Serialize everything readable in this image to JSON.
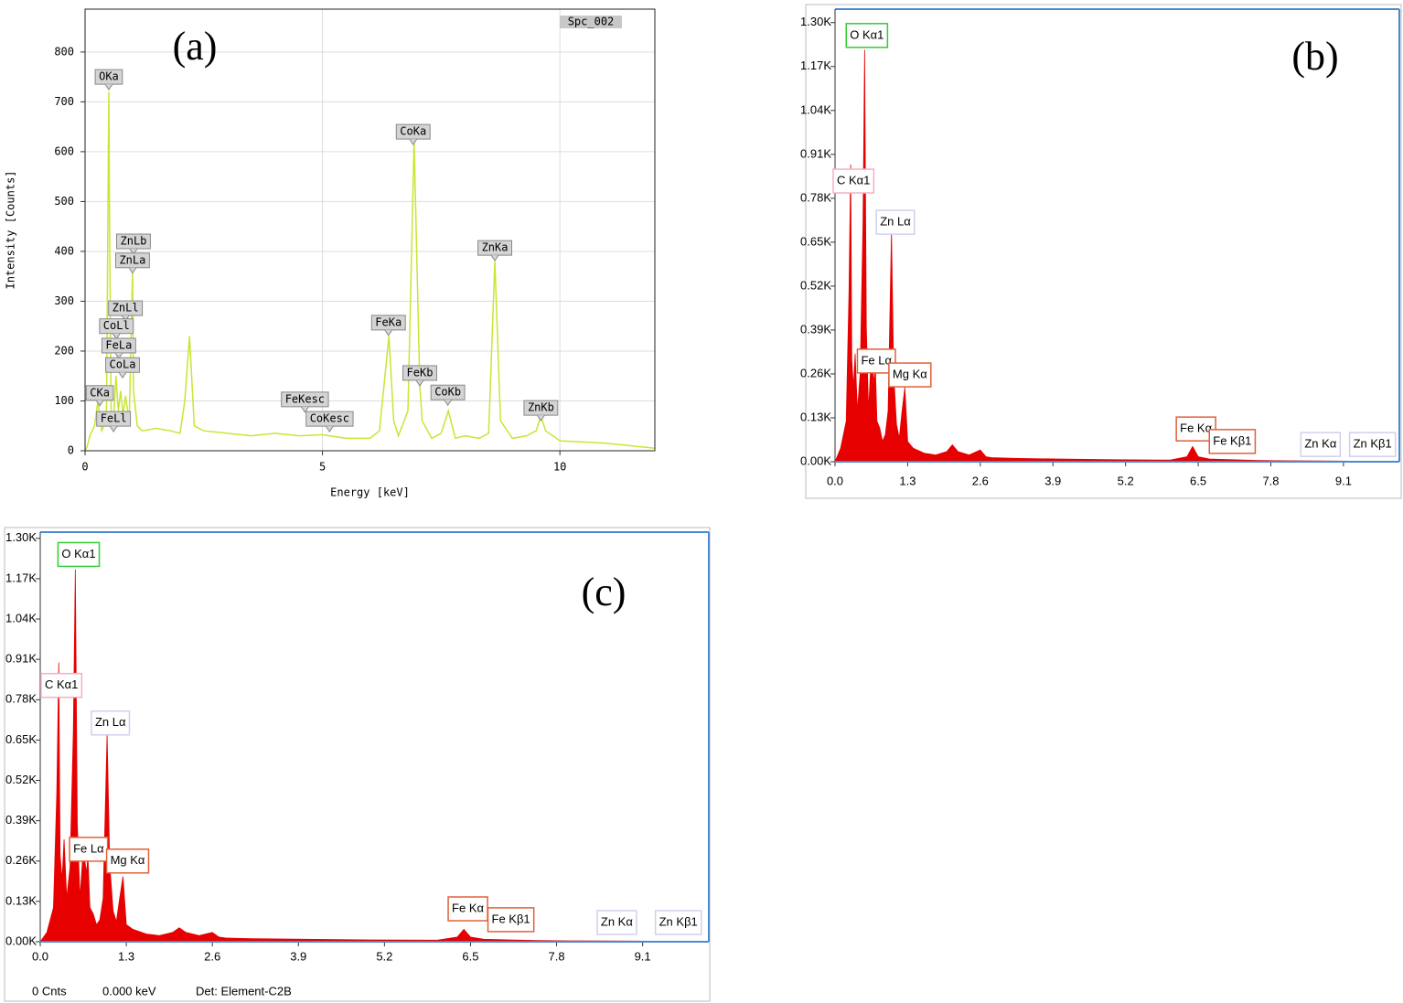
{
  "chart_data": [
    {
      "type": "line",
      "panel_label": "(a)",
      "spectrum_name": "Spc_002",
      "x_label": "Energy [keV]",
      "y_label": "Intensity [Counts]",
      "color": "#c8e632",
      "grid": true,
      "annotation_color": "#d4d4d4",
      "xlim": [
        0,
        12
      ],
      "xticks": [
        0,
        5,
        10
      ],
      "ylim": [
        0,
        886
      ],
      "yticks": [
        0,
        100,
        200,
        300,
        400,
        500,
        600,
        700,
        800
      ],
      "x": [
        0,
        0.05,
        0.1,
        0.2,
        0.27,
        0.35,
        0.45,
        0.5,
        0.52,
        0.55,
        0.6,
        0.65,
        0.7,
        0.75,
        0.8,
        0.85,
        0.93,
        1.0,
        1.02,
        1.1,
        1.2,
        1.5,
        1.8,
        2.0,
        2.1,
        2.2,
        2.3,
        2.5,
        3,
        3.5,
        4,
        4.5,
        5,
        5.5,
        6.0,
        6.2,
        6.4,
        6.5,
        6.6,
        6.8,
        6.93,
        7.05,
        7.1,
        7.3,
        7.5,
        7.65,
        7.8,
        8.0,
        8.3,
        8.5,
        8.63,
        8.75,
        9.0,
        9.3,
        9.5,
        9.6,
        9.7,
        10,
        11,
        12
      ],
      "values": [
        0,
        10,
        30,
        50,
        100,
        40,
        60,
        720,
        400,
        80,
        60,
        150,
        80,
        120,
        70,
        110,
        60,
        360,
        120,
        50,
        40,
        45,
        40,
        35,
        100,
        230,
        50,
        40,
        35,
        30,
        35,
        30,
        32,
        25,
        25,
        40,
        230,
        60,
        30,
        80,
        620,
        130,
        60,
        25,
        35,
        80,
        25,
        30,
        25,
        35,
        380,
        60,
        25,
        30,
        40,
        70,
        40,
        20,
        15,
        5
      ],
      "annotations": [
        {
          "text": "OKa",
          "x": 0.5,
          "y": 750
        },
        {
          "text": "ZnLb",
          "x": 1.02,
          "y": 420
        },
        {
          "text": "ZnLa",
          "x": 1.0,
          "y": 382
        },
        {
          "text": "ZnLl",
          "x": 0.85,
          "y": 286
        },
        {
          "text": "CoLl",
          "x": 0.66,
          "y": 250
        },
        {
          "text": "FeLa",
          "x": 0.71,
          "y": 211
        },
        {
          "text": "CoLa",
          "x": 0.79,
          "y": 172
        },
        {
          "text": "CKa",
          "x": 0.31,
          "y": 116
        },
        {
          "text": "FeLl",
          "x": 0.6,
          "y": 64
        },
        {
          "text": "FeKesc",
          "x": 4.63,
          "y": 103
        },
        {
          "text": "CoKesc",
          "x": 5.15,
          "y": 64
        },
        {
          "text": "FeKa",
          "x": 6.39,
          "y": 257
        },
        {
          "text": "CoKa",
          "x": 6.91,
          "y": 640
        },
        {
          "text": "FeKb",
          "x": 7.05,
          "y": 156
        },
        {
          "text": "CoKb",
          "x": 7.64,
          "y": 117
        },
        {
          "text": "ZnKa",
          "x": 8.63,
          "y": 407
        },
        {
          "text": "ZnKb",
          "x": 9.6,
          "y": 86
        }
      ]
    },
    {
      "type": "area",
      "panel_label": "(b)",
      "color": "#e60000",
      "xlim": [
        0,
        10.1
      ],
      "xticks": [
        {
          "value": 0,
          "label": "0.0"
        },
        1.3,
        2.6,
        3.9,
        5.2,
        6.5,
        7.8,
        9.1
      ],
      "ylim": [
        0,
        1340
      ],
      "yticks": [
        {
          "value": 0,
          "label": "0.00K"
        },
        {
          "value": 130,
          "label": "0.13K"
        },
        {
          "value": 260,
          "label": "0.26K"
        },
        {
          "value": 390,
          "label": "0.39K"
        },
        {
          "value": 520,
          "label": "0.52K"
        },
        {
          "value": 650,
          "label": "0.65K"
        },
        {
          "value": 780,
          "label": "0.78K"
        },
        {
          "value": 910,
          "label": "0.91K"
        },
        {
          "value": 1040,
          "label": "1.04K"
        },
        {
          "value": 1170,
          "label": "1.17K"
        },
        {
          "value": 1300,
          "label": "1.30K"
        }
      ],
      "x": [
        0,
        0.1,
        0.2,
        0.25,
        0.28,
        0.3,
        0.33,
        0.36,
        0.4,
        0.45,
        0.5,
        0.53,
        0.56,
        0.6,
        0.65,
        0.7,
        0.72,
        0.75,
        0.8,
        0.85,
        0.9,
        0.95,
        1.01,
        1.05,
        1.1,
        1.15,
        1.2,
        1.25,
        1.3,
        1.4,
        1.6,
        1.8,
        2.0,
        2.1,
        2.2,
        2.4,
        2.6,
        2.7,
        2.8,
        3.2,
        4,
        5,
        6,
        6.3,
        6.4,
        6.5,
        6.7,
        7.1,
        7.5,
        8,
        9,
        10.1
      ],
      "values": [
        0,
        40,
        120,
        500,
        880,
        300,
        220,
        320,
        150,
        260,
        700,
        1220,
        400,
        150,
        320,
        230,
        290,
        120,
        100,
        60,
        80,
        150,
        680,
        260,
        110,
        70,
        150,
        220,
        60,
        40,
        25,
        20,
        30,
        50,
        30,
        20,
        35,
        15,
        12,
        10,
        8,
        6,
        5,
        15,
        45,
        15,
        8,
        6,
        4,
        3,
        2,
        0
      ],
      "annotations": [
        {
          "text": "O  Kα1",
          "x": 0.57,
          "y": 1262,
          "color": "#33cc33"
        },
        {
          "text": "C  Kα1",
          "x": 0.33,
          "y": 831,
          "color": "#f4b0c0"
        },
        {
          "text": "Zn Lα",
          "x": 1.08,
          "y": 709,
          "color": "#d0d0ee"
        },
        {
          "text": "Fe Lα",
          "x": 0.74,
          "y": 298,
          "color": "#e0603a"
        },
        {
          "text": "Mg Kα",
          "x": 1.34,
          "y": 257,
          "color": "#e0603a"
        },
        {
          "text": "Fe Kα",
          "x": 6.46,
          "y": 97,
          "color": "#e0603a"
        },
        {
          "text": "Fe Kβ1",
          "x": 7.11,
          "y": 60,
          "color": "#e0603a"
        },
        {
          "text": "Zn Kα",
          "x": 8.69,
          "y": 51,
          "color": "#d0d0ee"
        },
        {
          "text": "Zn Kβ1",
          "x": 9.62,
          "y": 51,
          "color": "#d0d0ee"
        }
      ]
    },
    {
      "type": "area",
      "panel_label": "(c)",
      "color": "#e60000",
      "footer": [
        "0 Cnts",
        "0.000 keV",
        "Det: Element-C2B"
      ],
      "xlim": [
        0,
        10.1
      ],
      "xticks": [
        {
          "value": 0,
          "label": "0.0"
        },
        1.3,
        2.6,
        3.9,
        5.2,
        6.5,
        7.8,
        9.1
      ],
      "ylim": [
        0,
        1320
      ],
      "yticks": [
        {
          "value": 0,
          "label": "0.00K"
        },
        {
          "value": 130,
          "label": "0.13K"
        },
        {
          "value": 260,
          "label": "0.26K"
        },
        {
          "value": 390,
          "label": "0.39K"
        },
        {
          "value": 520,
          "label": "0.52K"
        },
        {
          "value": 650,
          "label": "0.65K"
        },
        {
          "value": 780,
          "label": "0.78K"
        },
        {
          "value": 910,
          "label": "0.91K"
        },
        {
          "value": 1040,
          "label": "1.04K"
        },
        {
          "value": 1170,
          "label": "1.17K"
        },
        {
          "value": 1300,
          "label": "1.30K"
        }
      ],
      "x": [
        0,
        0.1,
        0.2,
        0.25,
        0.28,
        0.3,
        0.33,
        0.36,
        0.4,
        0.45,
        0.5,
        0.53,
        0.56,
        0.6,
        0.65,
        0.7,
        0.72,
        0.75,
        0.8,
        0.85,
        0.9,
        0.95,
        1.01,
        1.05,
        1.1,
        1.15,
        1.2,
        1.25,
        1.3,
        1.4,
        1.6,
        1.8,
        2.0,
        2.1,
        2.2,
        2.4,
        2.6,
        2.7,
        2.8,
        3.2,
        4,
        5,
        6,
        6.3,
        6.4,
        6.5,
        6.7,
        7.1,
        7.5,
        8,
        9,
        10.1
      ],
      "values": [
        0,
        30,
        110,
        480,
        900,
        280,
        200,
        330,
        140,
        240,
        680,
        1200,
        380,
        140,
        300,
        220,
        280,
        110,
        90,
        55,
        70,
        140,
        670,
        250,
        100,
        65,
        140,
        210,
        55,
        40,
        25,
        20,
        30,
        45,
        30,
        20,
        30,
        15,
        12,
        10,
        8,
        6,
        5,
        15,
        40,
        15,
        8,
        6,
        4,
        3,
        2,
        0
      ],
      "annotations": [
        {
          "text": "O  Kα1",
          "x": 0.58,
          "y": 1248,
          "color": "#33cc33"
        },
        {
          "text": "C  Kα1",
          "x": 0.32,
          "y": 826,
          "color": "#f4b0c0"
        },
        {
          "text": "Zn Lα",
          "x": 1.06,
          "y": 705,
          "color": "#d0d0ee"
        },
        {
          "text": "Fe Lα",
          "x": 0.73,
          "y": 298,
          "color": "#e0603a"
        },
        {
          "text": "Mg Kα",
          "x": 1.32,
          "y": 260,
          "color": "#e0603a"
        },
        {
          "text": "Fe Kα",
          "x": 6.46,
          "y": 106,
          "color": "#e0603a"
        },
        {
          "text": "Fe Kβ1",
          "x": 7.11,
          "y": 71,
          "color": "#e0603a"
        },
        {
          "text": "Zn Kα",
          "x": 8.71,
          "y": 62,
          "color": "#d0d0ee"
        },
        {
          "text": "Zn Kβ1",
          "x": 9.64,
          "y": 62,
          "color": "#d0d0ee"
        }
      ]
    }
  ]
}
